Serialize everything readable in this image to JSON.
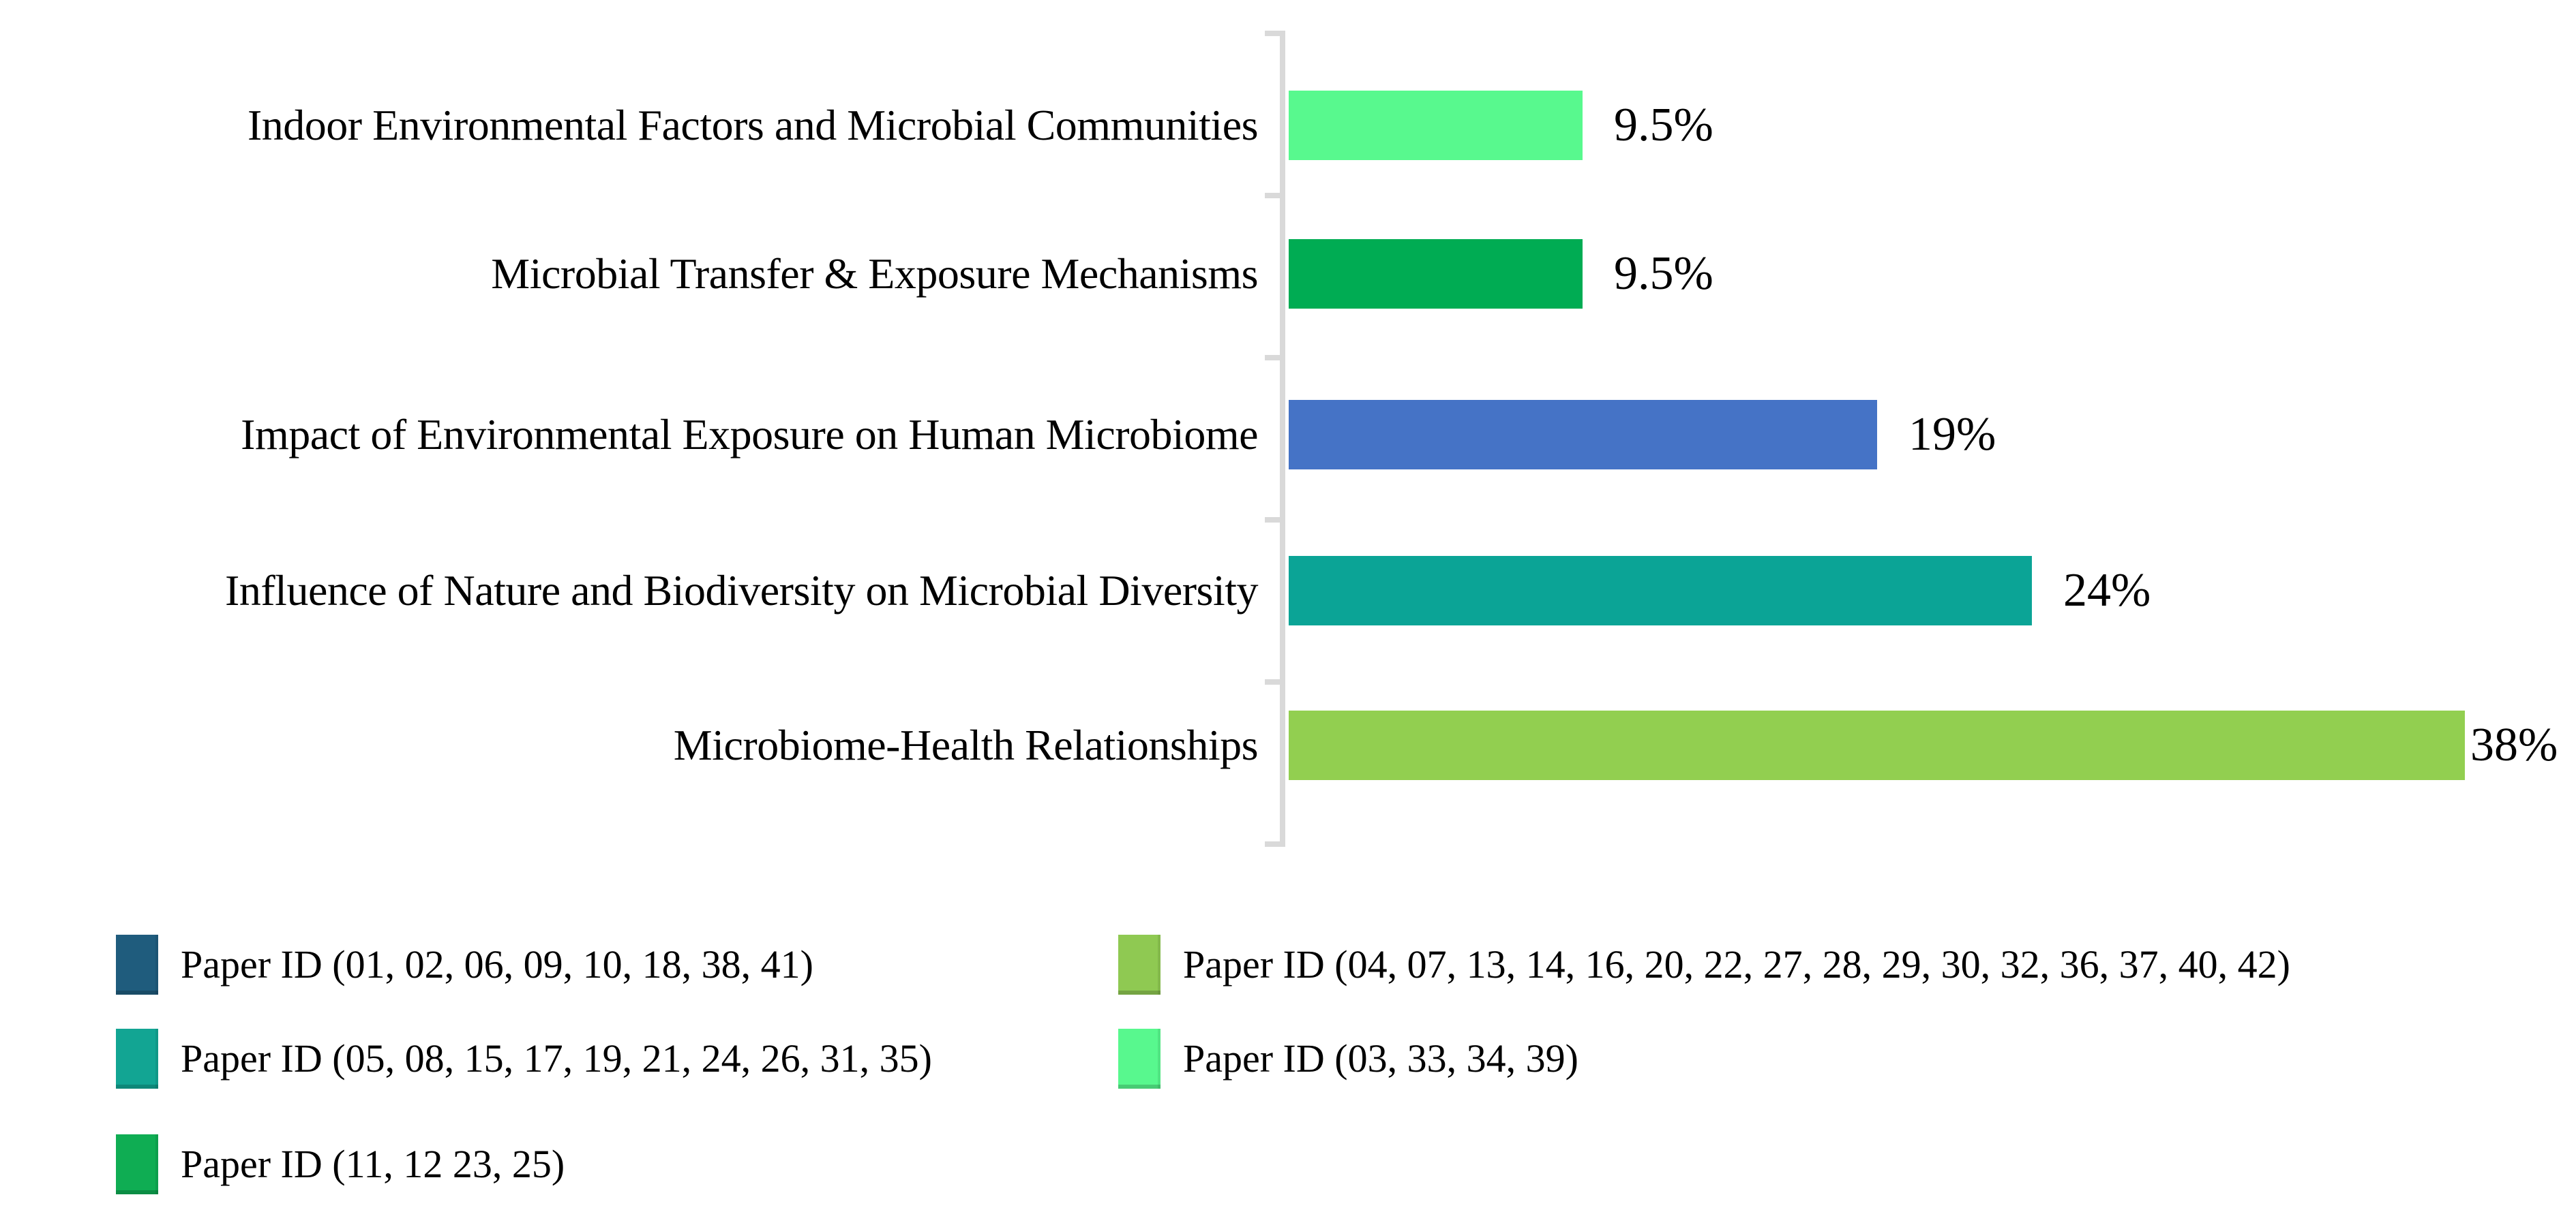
{
  "figure": {
    "background": "#FFFFFF",
    "axis_color": "#D9D9D9"
  },
  "chart_data": {
    "type": "bar",
    "orientation": "horizontal",
    "title": "",
    "xlabel": "",
    "ylabel": "",
    "xlim": [
      0,
      40
    ],
    "grid": false,
    "legend_position": "bottom",
    "categories": [
      "Indoor Environmental Factors and Microbial Communities",
      "Microbial Transfer & Exposure Mechanisms",
      "Impact of Environmental Exposure on Human Microbiome",
      "Influence of Nature and Biodiversity on Microbial Diversity",
      "Microbiome-Health Relationships"
    ],
    "values": [
      9.5,
      9.5,
      19,
      24,
      38
    ],
    "value_labels": [
      "9.5%",
      "9.5%",
      "19%",
      "24%",
      "38%"
    ],
    "bar_colors": [
      "#58F98E",
      "#00AC53",
      "#4573C6",
      "#0BA496",
      "#92CF50"
    ]
  },
  "legend": {
    "items": [
      {
        "label": "Paper ID (01, 02, 06, 09, 10, 18, 38, 41)",
        "color": "#1F5C7D"
      },
      {
        "label": "Paper ID (04, 07, 13, 14, 16, 20, 22, 27, 28, 29, 30, 32, 36, 37, 40, 42)",
        "color": "#8FC952"
      },
      {
        "label": "Paper ID (05, 08, 15, 17, 19, 21, 24, 26, 31, 35)",
        "color": "#12A593"
      },
      {
        "label": "Paper ID (03, 33, 34, 39)",
        "color": "#58F88E"
      },
      {
        "label": "Paper ID (11, 12 23, 25)",
        "color": "#0FAD53"
      }
    ]
  }
}
